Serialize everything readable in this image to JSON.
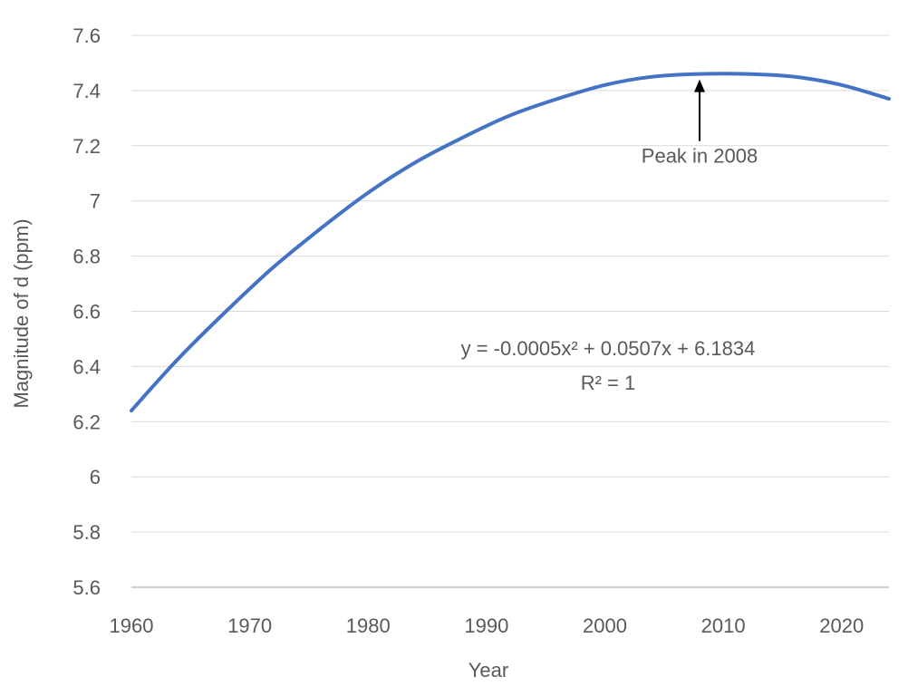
{
  "chart_data": {
    "type": "line",
    "title": "",
    "xlabel": "Year",
    "ylabel": "Magnitude of d (ppm)",
    "xlim": [
      1960,
      2024
    ],
    "ylim": [
      5.6,
      7.6
    ],
    "x_ticks": [
      1960,
      1970,
      1980,
      1990,
      2000,
      2010,
      2020
    ],
    "y_ticks": [
      5.6,
      5.8,
      6.0,
      6.2,
      6.4,
      6.6,
      6.8,
      7.0,
      7.2,
      7.4,
      7.6
    ],
    "y_tick_labels": [
      "5.6",
      "5.8",
      "6",
      "6.2",
      "6.4",
      "6.6",
      "6.8",
      "7",
      "7.2",
      "7.4",
      "7.6"
    ],
    "grid": true,
    "legend": "none",
    "series": [
      {
        "color": "#4472c4",
        "x": [
          1960,
          1964,
          1968,
          1972,
          1976,
          1980,
          1984,
          1988,
          1992,
          1996,
          2000,
          2004,
          2008,
          2012,
          2016,
          2020,
          2024
        ],
        "y": [
          6.24,
          6.43,
          6.6,
          6.76,
          6.9,
          7.03,
          7.14,
          7.23,
          7.31,
          7.37,
          7.42,
          7.45,
          7.46,
          7.46,
          7.45,
          7.42,
          7.37
        ]
      }
    ],
    "annotations": {
      "peak_label": "Peak in 2008",
      "peak_x": 2008,
      "peak_y": 7.46,
      "equation": "y = -0.0005x² + 0.0507x + 6.1834",
      "r_squared": "R² = 1"
    }
  }
}
